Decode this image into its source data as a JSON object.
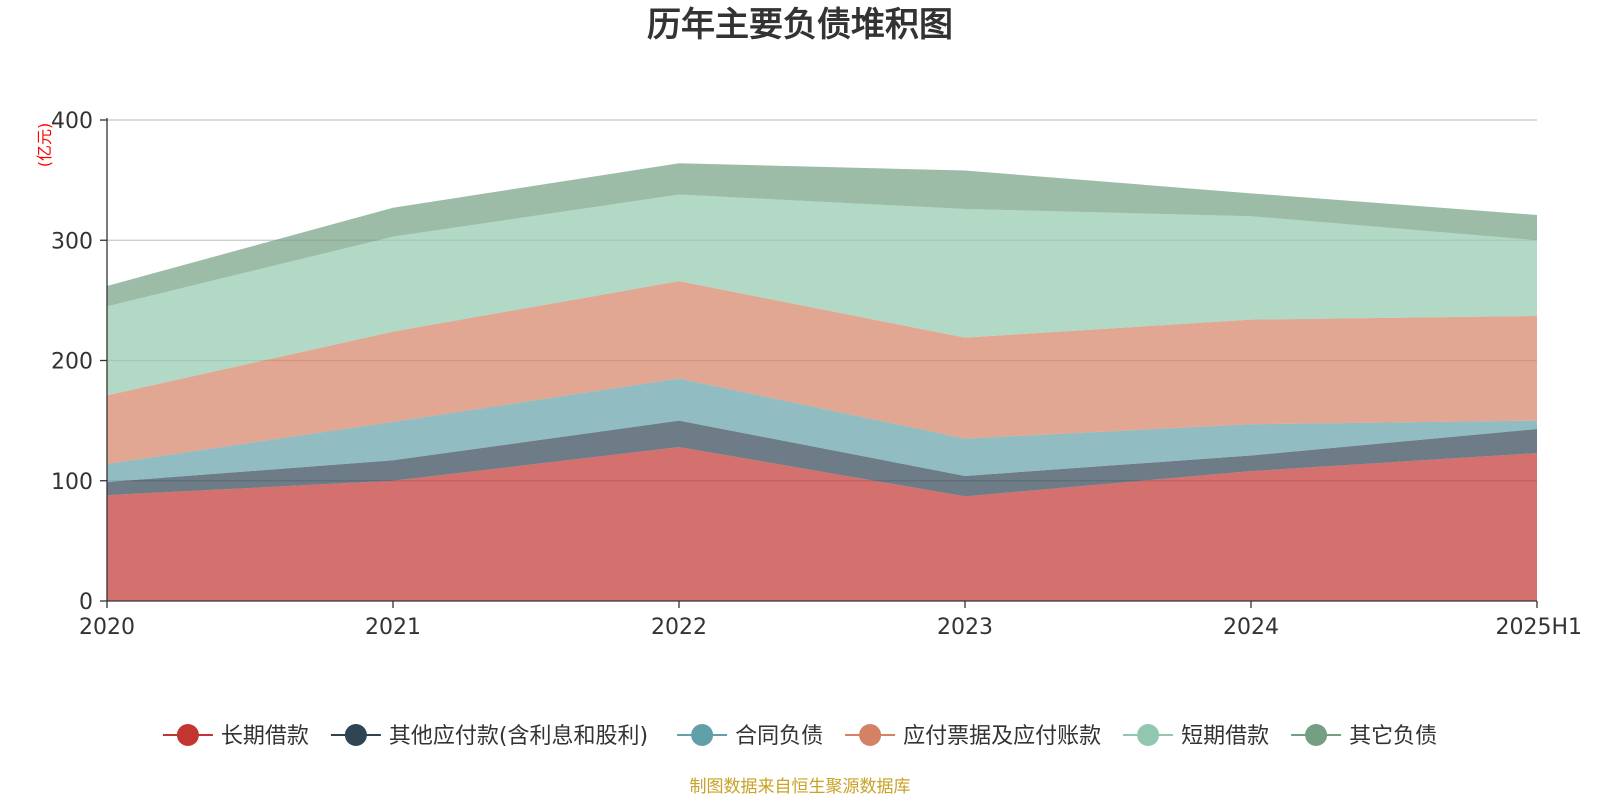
{
  "chart_data": {
    "type": "area",
    "stacked": true,
    "title": "历年主要负债堆积图",
    "ylabel": "(亿元)",
    "xlabel": "",
    "categories": [
      "2020",
      "2021",
      "2022",
      "2023",
      "2024",
      "2025H1"
    ],
    "ylim": [
      0,
      400
    ],
    "yticks": [
      0,
      100,
      200,
      300,
      400
    ],
    "grid": true,
    "legend_position": "bottom",
    "series": [
      {
        "name": "长期借款",
        "color": "#c23531",
        "values": [
          88,
          100,
          128,
          87,
          108,
          123
        ]
      },
      {
        "name": "其他应付款(含利息和股利)",
        "color": "#2f4554",
        "values": [
          11,
          17,
          22,
          17,
          13,
          20
        ]
      },
      {
        "name": "合同负债",
        "color": "#61a0a8",
        "values": [
          15,
          32,
          35,
          31,
          26,
          7
        ]
      },
      {
        "name": "应付票据及应付账款",
        "color": "#d48265",
        "values": [
          57,
          75,
          81,
          84,
          87,
          87
        ]
      },
      {
        "name": "短期借款",
        "color": "#91c7ae",
        "values": [
          74,
          79,
          72,
          107,
          86,
          63
        ]
      },
      {
        "name": "其它负债",
        "color": "#749f83",
        "values": [
          17,
          24,
          26,
          32,
          19,
          21
        ]
      }
    ],
    "source": "制图数据来自恒生聚源数据库"
  }
}
